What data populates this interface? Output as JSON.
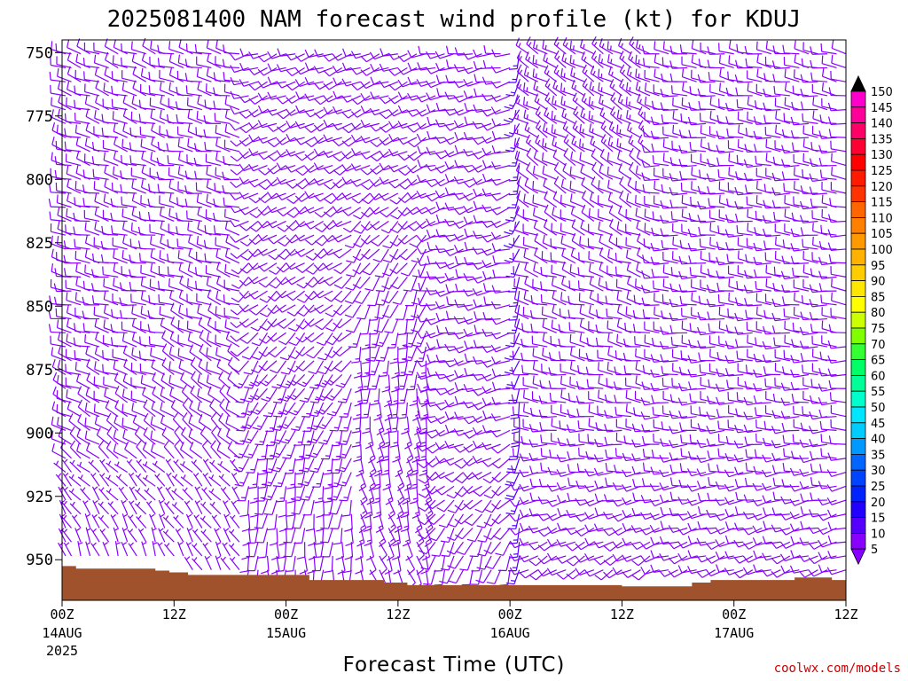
{
  "chart_data": {
    "type": "wind-barb time-height section",
    "title": "2025081400 NAM forecast wind profile (kt) for KDUJ",
    "xlabel": "Forecast Time (UTC)",
    "ylabel": "",
    "y_axis": {
      "quantity": "pressure (hPa)",
      "ticks": [
        "750",
        "775",
        "800",
        "825",
        "850",
        "875",
        "900",
        "925",
        "950"
      ],
      "range": [
        745,
        966
      ],
      "inverted": true
    },
    "x_axis": {
      "range_hours": [
        0,
        84
      ],
      "ticks": [
        {
          "hour": 0,
          "time": "00Z",
          "date": "14AUG",
          "year": "2025"
        },
        {
          "hour": 12,
          "time": "12Z",
          "date": "",
          "year": ""
        },
        {
          "hour": 24,
          "time": "00Z",
          "date": "15AUG",
          "year": ""
        },
        {
          "hour": 36,
          "time": "12Z",
          "date": "",
          "year": ""
        },
        {
          "hour": 48,
          "time": "00Z",
          "date": "16AUG",
          "year": ""
        },
        {
          "hour": 60,
          "time": "12Z",
          "date": "",
          "year": ""
        },
        {
          "hour": 72,
          "time": "00Z",
          "date": "17AUG",
          "year": ""
        },
        {
          "hour": 84,
          "time": "12Z",
          "date": "",
          "year": ""
        }
      ]
    },
    "colorbar": {
      "unit": "kt",
      "labels": [
        "150",
        "145",
        "140",
        "135",
        "130",
        "125",
        "120",
        "115",
        "110",
        "105",
        "100",
        "95",
        "90",
        "85",
        "80",
        "75",
        "70",
        "65",
        "60",
        "55",
        "50",
        "45",
        "40",
        "35",
        "30",
        "25",
        "20",
        "15",
        "10",
        "5"
      ],
      "colors": [
        "#ff00ff",
        "#ff00cc",
        "#ff0099",
        "#ff0066",
        "#ff0033",
        "#ff0000",
        "#ff1a00",
        "#ff3300",
        "#ff6600",
        "#ff8000",
        "#ff9900",
        "#ffb300",
        "#ffcc00",
        "#ffe600",
        "#ffff00",
        "#ccff00",
        "#80ff00",
        "#33ff33",
        "#00ff66",
        "#00ff99",
        "#00ffcc",
        "#00e6ff",
        "#00ccff",
        "#0099ff",
        "#0066ff",
        "#0044ff",
        "#0022ff",
        "#2200ff",
        "#5500ff",
        "#8800ff"
      ]
    },
    "barb_colors": {
      "light": "#8800ff",
      "moderate": "#5500ff",
      "strong": "#0033ff"
    },
    "terrain": {
      "color": "#a0522d",
      "surface_pressure": [
        {
          "hour": 0,
          "p": 952.5
        },
        {
          "hour": 1.5,
          "p": 953.5
        },
        {
          "hour": 9.5,
          "p": 953.5
        },
        {
          "hour": 10,
          "p": 954.3
        },
        {
          "hour": 11.5,
          "p": 955
        },
        {
          "hour": 13.5,
          "p": 956
        },
        {
          "hour": 24.5,
          "p": 956
        },
        {
          "hour": 26.5,
          "p": 958
        },
        {
          "hour": 33.5,
          "p": 958
        },
        {
          "hour": 34.5,
          "p": 959
        },
        {
          "hour": 37,
          "p": 960
        },
        {
          "hour": 52.5,
          "p": 960
        },
        {
          "hour": 60,
          "p": 960.5
        },
        {
          "hour": 65.5,
          "p": 960.5
        },
        {
          "hour": 67.5,
          "p": 959
        },
        {
          "hour": 69.5,
          "p": 958
        },
        {
          "hour": 77.5,
          "p": 958
        },
        {
          "hour": 78.5,
          "p": 957
        },
        {
          "hour": 82,
          "p": 957
        },
        {
          "hour": 82.5,
          "p": 958
        },
        {
          "hour": 84,
          "p": 958
        }
      ]
    },
    "wind_profile": [
      {
        "hours": [
          0,
          12
        ],
        "levels": [
          {
            "p": 750,
            "dir": 290,
            "kt": 12
          },
          {
            "p": 800,
            "dir": 285,
            "kt": 10
          },
          {
            "p": 850,
            "dir": 280,
            "kt": 8
          },
          {
            "p": 900,
            "dir": 300,
            "kt": 8
          },
          {
            "p": 950,
            "dir": 340,
            "kt": 6
          }
        ]
      },
      {
        "hours": [
          12,
          20
        ],
        "levels": [
          {
            "p": 750,
            "dir": 285,
            "kt": 10
          },
          {
            "p": 800,
            "dir": 280,
            "kt": 10
          },
          {
            "p": 850,
            "dir": 290,
            "kt": 8
          },
          {
            "p": 900,
            "dir": 310,
            "kt": 8
          },
          {
            "p": 950,
            "dir": 330,
            "kt": 6
          }
        ]
      },
      {
        "hours": [
          20,
          32
        ],
        "levels": [
          {
            "p": 750,
            "dir": 250,
            "kt": 12
          },
          {
            "p": 800,
            "dir": 240,
            "kt": 10
          },
          {
            "p": 850,
            "dir": 230,
            "kt": 10
          },
          {
            "p": 900,
            "dir": 200,
            "kt": 15
          },
          {
            "p": 950,
            "dir": 180,
            "kt": 10
          }
        ]
      },
      {
        "hours": [
          32,
          40
        ],
        "levels": [
          {
            "p": 750,
            "dir": 250,
            "kt": 12
          },
          {
            "p": 800,
            "dir": 240,
            "kt": 12
          },
          {
            "p": 850,
            "dir": 200,
            "kt": 12
          },
          {
            "p": 900,
            "dir": 170,
            "kt": 15
          },
          {
            "p": 950,
            "dir": 160,
            "kt": 12
          }
        ]
      },
      {
        "hours": [
          40,
          49
        ],
        "levels": [
          {
            "p": 750,
            "dir": 260,
            "kt": 10
          },
          {
            "p": 800,
            "dir": 250,
            "kt": 10
          },
          {
            "p": 850,
            "dir": 260,
            "kt": 8
          },
          {
            "p": 900,
            "dir": 250,
            "kt": 8
          },
          {
            "p": 950,
            "dir": 200,
            "kt": 8
          }
        ]
      },
      {
        "hours": [
          49,
          50
        ],
        "levels": [
          {
            "p": 750,
            "dir": 200,
            "kt": 15
          },
          {
            "p": 800,
            "dir": 200,
            "kt": 15
          },
          {
            "p": 850,
            "dir": 200,
            "kt": 15
          },
          {
            "p": 900,
            "dir": 190,
            "kt": 20
          },
          {
            "p": 950,
            "dir": 200,
            "kt": 15
          }
        ]
      },
      {
        "hours": [
          50,
          64
        ],
        "levels": [
          {
            "p": 750,
            "dir": 300,
            "kt": 15
          },
          {
            "p": 800,
            "dir": 300,
            "kt": 12
          },
          {
            "p": 850,
            "dir": 285,
            "kt": 12
          },
          {
            "p": 900,
            "dir": 275,
            "kt": 12
          },
          {
            "p": 950,
            "dir": 240,
            "kt": 8
          }
        ]
      },
      {
        "hours": [
          64,
          84
        ],
        "levels": [
          {
            "p": 750,
            "dir": 280,
            "kt": 10
          },
          {
            "p": 800,
            "dir": 275,
            "kt": 10
          },
          {
            "p": 850,
            "dir": 275,
            "kt": 12
          },
          {
            "p": 900,
            "dir": 270,
            "kt": 12
          },
          {
            "p": 950,
            "dir": 250,
            "kt": 10
          }
        ]
      }
    ]
  },
  "credit": "coolwx.com/models"
}
